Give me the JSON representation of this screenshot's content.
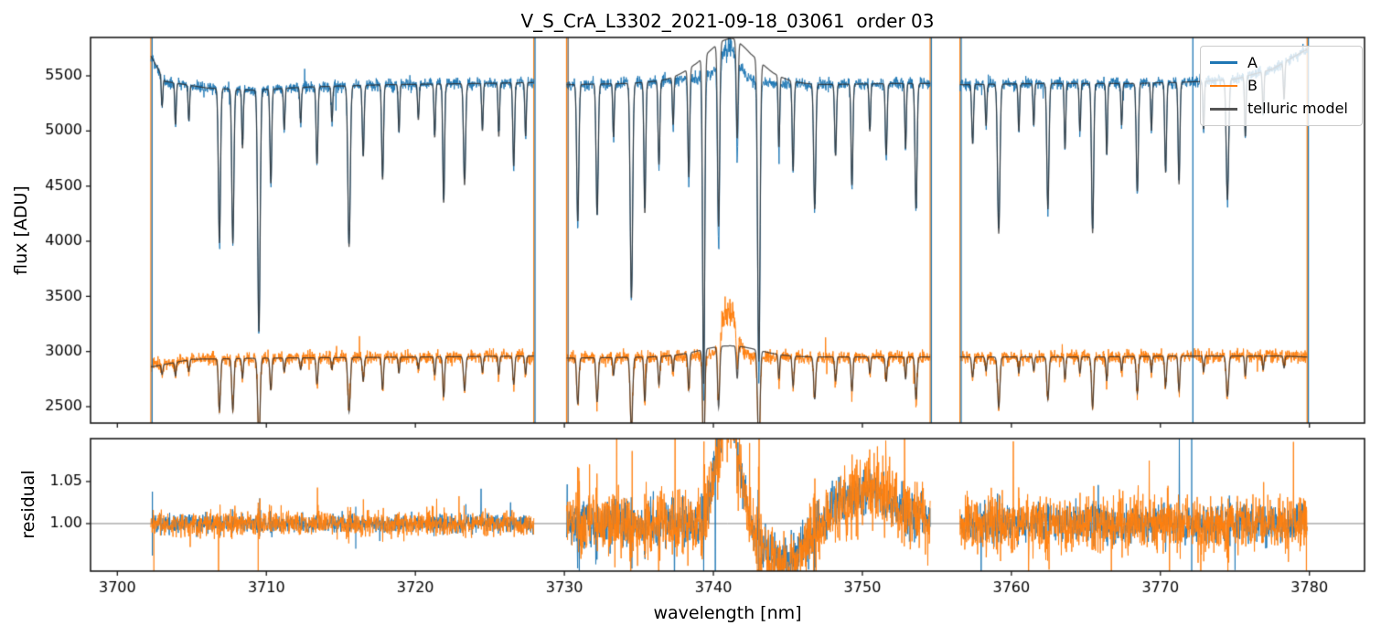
{
  "chart_data": {
    "type": "line",
    "title": "V_S_CrA_L3302_2021-09-18_03061  order 03",
    "xlabel": "wavelength [nm]",
    "x_axis": {
      "ticks": [
        "3700",
        "3710",
        "3720",
        "3730",
        "3740",
        "3750",
        "3760",
        "3770",
        "3780"
      ],
      "tick_values": [
        3700,
        3710,
        3720,
        3730,
        3740,
        3750,
        3760,
        3770,
        3780
      ],
      "lim": [
        3698.2,
        3783.7
      ]
    },
    "panels": [
      {
        "name": "flux",
        "ylabel": "flux [ADU]",
        "tick_labels": [
          "2500",
          "3000",
          "3500",
          "4000",
          "4500",
          "5000",
          "5500"
        ],
        "tick_values": [
          2500,
          3000,
          3500,
          4000,
          4500,
          5000,
          5500
        ],
        "lim": [
          2351,
          5848
        ],
        "grid": false
      },
      {
        "name": "residual",
        "ylabel": "residual",
        "tick_labels": [
          "1.00",
          "1.05"
        ],
        "tick_values": [
          1.0,
          1.05
        ],
        "lim": [
          0.9435,
          1.101
        ],
        "hline": 1.0,
        "grid": false
      }
    ],
    "legend": [
      {
        "label": "A",
        "color": "#1f77b4"
      },
      {
        "label": "B",
        "color": "#ff7f0e"
      },
      {
        "label": "telluric model",
        "color": "#555555"
      }
    ],
    "legend_position": "upper right",
    "segments": [
      [
        3702.25,
        3727.95
      ],
      [
        3730.15,
        3754.55
      ],
      [
        3756.55,
        3779.85
      ]
    ],
    "continuum_A": [
      [
        3702.25,
        5680
      ],
      [
        3703.2,
        5450
      ],
      [
        3706,
        5390
      ],
      [
        3709,
        5370
      ],
      [
        3713,
        5400
      ],
      [
        3718,
        5420
      ],
      [
        3724,
        5430
      ],
      [
        3727.95,
        5440
      ],
      [
        3730.15,
        5420
      ],
      [
        3734,
        5430
      ],
      [
        3737,
        5450
      ],
      [
        3739,
        5480
      ],
      [
        3740.6,
        5540
      ],
      [
        3741.3,
        5550
      ],
      [
        3742.5,
        5470
      ],
      [
        3744,
        5430
      ],
      [
        3747,
        5420
      ],
      [
        3752,
        5430
      ],
      [
        3754.55,
        5430
      ],
      [
        3756.55,
        5420
      ],
      [
        3762,
        5430
      ],
      [
        3768,
        5430
      ],
      [
        3771,
        5440
      ],
      [
        3773,
        5450
      ],
      [
        3775,
        5470
      ],
      [
        3777.5,
        5560
      ],
      [
        3779.3,
        5700
      ],
      [
        3779.85,
        5740
      ]
    ],
    "continuum_B": [
      [
        3702.25,
        2860
      ],
      [
        3705,
        2930
      ],
      [
        3710,
        2940
      ],
      [
        3720,
        2950
      ],
      [
        3727.95,
        2960
      ],
      [
        3730.15,
        2940
      ],
      [
        3736,
        2950
      ],
      [
        3739.5,
        2960
      ],
      [
        3744,
        2950
      ],
      [
        3754.55,
        2950
      ],
      [
        3756.55,
        2950
      ],
      [
        3765,
        2950
      ],
      [
        3772,
        2960
      ],
      [
        3778,
        2960
      ],
      [
        3779.85,
        2950
      ]
    ],
    "emission": {
      "center": 3741.05,
      "sigma": 0.5,
      "amp_A": 210,
      "amp_B": 430
    },
    "model_bump": {
      "center": 3741.2,
      "sigma": 1.9,
      "amp_A": 290,
      "amp_B": 95
    },
    "absorption_lines": [
      [
        3703.0,
        0.05,
        0.05
      ],
      [
        3703.9,
        0.07,
        0.05
      ],
      [
        3704.8,
        0.06,
        0.05
      ],
      [
        3706.85,
        0.26,
        0.07
      ],
      [
        3707.75,
        0.26,
        0.07
      ],
      [
        3708.4,
        0.1,
        0.05
      ],
      [
        3709.5,
        0.41,
        0.08
      ],
      [
        3710.3,
        0.16,
        0.06
      ],
      [
        3711.2,
        0.07,
        0.05
      ],
      [
        3712.3,
        0.06,
        0.05
      ],
      [
        3713.4,
        0.13,
        0.06
      ],
      [
        3714.4,
        0.06,
        0.05
      ],
      [
        3715.55,
        0.27,
        0.08
      ],
      [
        3716.5,
        0.12,
        0.06
      ],
      [
        3717.8,
        0.16,
        0.06
      ],
      [
        3718.9,
        0.08,
        0.05
      ],
      [
        3720.2,
        0.06,
        0.05
      ],
      [
        3721.3,
        0.09,
        0.05
      ],
      [
        3721.9,
        0.2,
        0.06
      ],
      [
        3723.3,
        0.17,
        0.07
      ],
      [
        3724.5,
        0.08,
        0.05
      ],
      [
        3725.6,
        0.09,
        0.05
      ],
      [
        3726.6,
        0.14,
        0.06
      ],
      [
        3727.4,
        0.09,
        0.05
      ],
      [
        3730.9,
        0.23,
        0.07
      ],
      [
        3732.2,
        0.22,
        0.07
      ],
      [
        3733.3,
        0.09,
        0.05
      ],
      [
        3734.5,
        0.36,
        0.08
      ],
      [
        3735.4,
        0.22,
        0.06
      ],
      [
        3736.35,
        0.14,
        0.06
      ],
      [
        3737.3,
        0.08,
        0.05
      ],
      [
        3738.35,
        0.18,
        0.06
      ],
      [
        3739.35,
        0.54,
        0.07
      ],
      [
        3740.35,
        0.3,
        0.07
      ],
      [
        3741.6,
        0.16,
        0.06
      ],
      [
        3743.05,
        0.5,
        0.08
      ],
      [
        3744.4,
        0.12,
        0.05
      ],
      [
        3745.35,
        0.15,
        0.06
      ],
      [
        3746.8,
        0.21,
        0.07
      ],
      [
        3748.2,
        0.12,
        0.06
      ],
      [
        3749.3,
        0.17,
        0.06
      ],
      [
        3750.5,
        0.08,
        0.05
      ],
      [
        3751.6,
        0.12,
        0.06
      ],
      [
        3752.9,
        0.11,
        0.05
      ],
      [
        3753.6,
        0.21,
        0.07
      ],
      [
        3757.4,
        0.1,
        0.06
      ],
      [
        3758.3,
        0.07,
        0.05
      ],
      [
        3759.15,
        0.25,
        0.08
      ],
      [
        3760.5,
        0.08,
        0.05
      ],
      [
        3761.5,
        0.07,
        0.05
      ],
      [
        3762.45,
        0.21,
        0.07
      ],
      [
        3763.6,
        0.11,
        0.05
      ],
      [
        3764.6,
        0.08,
        0.05
      ],
      [
        3765.45,
        0.25,
        0.07
      ],
      [
        3766.4,
        0.12,
        0.05
      ],
      [
        3767.4,
        0.07,
        0.05
      ],
      [
        3768.45,
        0.18,
        0.07
      ],
      [
        3769.4,
        0.08,
        0.05
      ],
      [
        3770.35,
        0.15,
        0.06
      ],
      [
        3771.25,
        0.17,
        0.06
      ],
      [
        3772.9,
        0.08,
        0.05
      ],
      [
        3774.5,
        0.2,
        0.08
      ],
      [
        3775.7,
        0.1,
        0.05
      ],
      [
        3776.9,
        0.07,
        0.05
      ],
      [
        3778.3,
        0.06,
        0.05
      ]
    ],
    "b_depth_scale": 0.62,
    "noise": {
      "A": 26,
      "B": 30,
      "residual_A": [
        0.005,
        0.013,
        0.011
      ],
      "residual_B": [
        0.007,
        0.02,
        0.016
      ]
    },
    "residual_features": {
      "bump": {
        "center": 3741.0,
        "sigma": 0.75,
        "amp": 0.135
      },
      "dip": {
        "center": 3744.8,
        "sigma": 1.5,
        "amp": -0.05
      },
      "wave": {
        "center": 3750.2,
        "sigma": 1.9,
        "amp": 0.04
      }
    },
    "vlines_flux": [
      {
        "x": 3702.25,
        "c": [
          "O",
          "A"
        ]
      },
      {
        "x": 3727.95,
        "c": [
          "O",
          "A"
        ]
      },
      {
        "x": 3730.15,
        "c": [
          "O",
          "M"
        ]
      },
      {
        "x": 3754.55,
        "c": [
          "O",
          "A"
        ]
      },
      {
        "x": 3756.55,
        "c": [
          "O",
          "A"
        ]
      },
      {
        "x": 3772.1,
        "c": [
          "A"
        ]
      },
      {
        "x": 3779.85,
        "c": [
          "O",
          "A"
        ]
      }
    ],
    "vlines_residual": [
      {
        "x": 3772.1,
        "c": [
          "A"
        ]
      }
    ],
    "residual_spikes": [
      {
        "x": 3702.35,
        "y0": 0.962,
        "y1": 1.038,
        "c": "A"
      },
      {
        "x": 3702.45,
        "y0": 0.935,
        "y1": 1.01,
        "c": "O"
      },
      {
        "x": 3709.45,
        "y0": 0.944,
        "y1": 1.025,
        "c": "O"
      },
      {
        "x": 3709.55,
        "y0": 0.985,
        "y1": 1.03,
        "c": "A"
      },
      {
        "x": 3716.0,
        "y0": 0.97,
        "y1": 1.02,
        "c": "A"
      },
      {
        "x": 3731.0,
        "y0": 0.944,
        "y1": 1.04,
        "c": "A"
      },
      {
        "x": 3779.8,
        "y0": 0.944,
        "y1": 1.02,
        "c": "O"
      }
    ],
    "colors": {
      "A": "#1f77b4",
      "B": "#ff7f0e",
      "model": "#555555",
      "hline": "#808080",
      "axis": "#1a1a1a"
    }
  }
}
